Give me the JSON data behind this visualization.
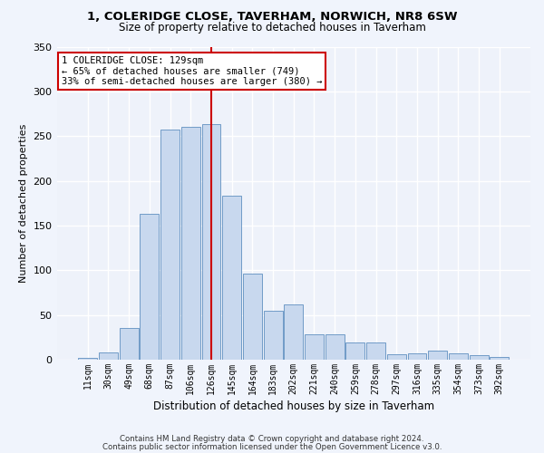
{
  "title1": "1, COLERIDGE CLOSE, TAVERHAM, NORWICH, NR8 6SW",
  "title2": "Size of property relative to detached houses in Taverham",
  "xlabel": "Distribution of detached houses by size in Taverham",
  "ylabel": "Number of detached properties",
  "categories": [
    "11sqm",
    "30sqm",
    "49sqm",
    "68sqm",
    "87sqm",
    "106sqm",
    "126sqm",
    "145sqm",
    "164sqm",
    "183sqm",
    "202sqm",
    "221sqm",
    "240sqm",
    "259sqm",
    "278sqm",
    "297sqm",
    "316sqm",
    "335sqm",
    "354sqm",
    "373sqm",
    "392sqm"
  ],
  "bar_heights": [
    2,
    8,
    35,
    163,
    257,
    260,
    263,
    183,
    96,
    55,
    62,
    28,
    28,
    19,
    19,
    6,
    7,
    10,
    7,
    5,
    3
  ],
  "bar_color": "#c8d8ee",
  "bar_edge_color": "#6090c0",
  "background_color": "#eef2fa",
  "grid_color": "#ffffff",
  "annotation_text": "1 COLERIDGE CLOSE: 129sqm\n← 65% of detached houses are smaller (749)\n33% of semi-detached houses are larger (380) →",
  "vline_x": 6.0,
  "vline_color": "#cc0000",
  "box_edge_color": "#cc0000",
  "annotation_fontsize": 7.5,
  "footer1": "Contains HM Land Registry data © Crown copyright and database right 2024.",
  "footer2": "Contains public sector information licensed under the Open Government Licence v3.0.",
  "ylim": [
    0,
    350
  ],
  "yticks": [
    0,
    50,
    100,
    150,
    200,
    250,
    300,
    350
  ],
  "title1_fontsize": 9.5,
  "title2_fontsize": 8.5,
  "xlabel_fontsize": 8.5,
  "ylabel_fontsize": 8.0
}
